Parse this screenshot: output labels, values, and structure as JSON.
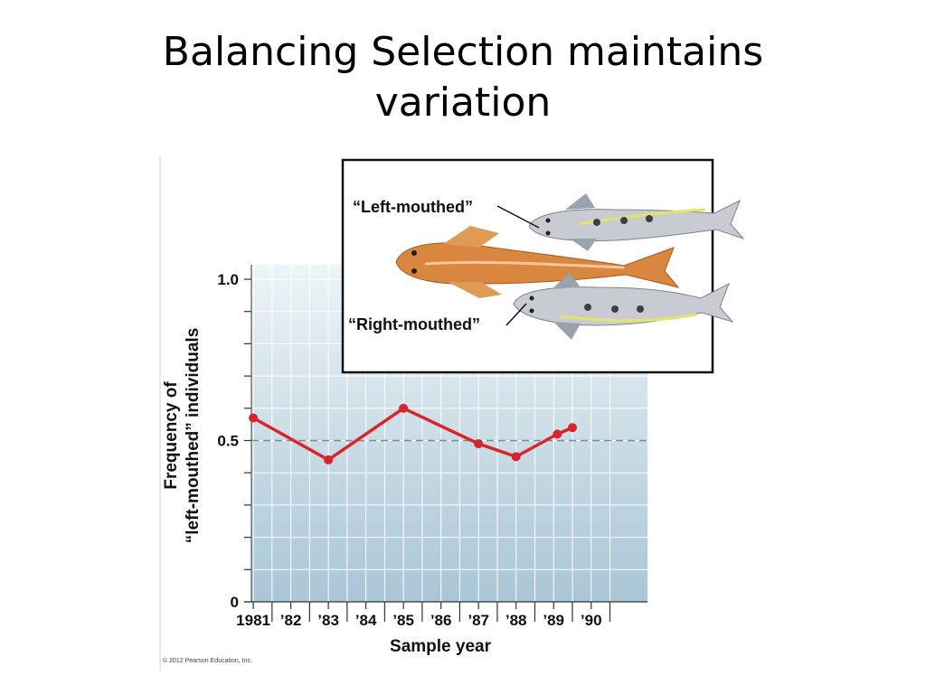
{
  "slide": {
    "title_line1": "Balancing Selection maintains",
    "title_line2": "variation",
    "copyright": "© 2012 Pearson Education, Inc."
  },
  "inset": {
    "label_left": "“Left-mouthed”",
    "label_right": "“Right-mouthed”"
  },
  "colors": {
    "plot_bg_top": "#eef4f7",
    "plot_bg_bottom": "#a9c6d6",
    "series": "#d7262b",
    "fish_orange": "#d9863f",
    "fish_gray": "#c8ccd2"
  },
  "chart_data": {
    "type": "line",
    "title": "",
    "xlabel": "Sample year",
    "ylabel_line1": "Frequency of",
    "ylabel_line2": "“left-mouthed” individuals",
    "x_tick_labels": [
      "1981",
      "’82",
      "’83",
      "’84",
      "’85",
      "’86",
      "’87",
      "’88",
      "’89",
      "’90"
    ],
    "y_tick_labels": [
      "0",
      "0.5",
      "1.0"
    ],
    "xlim": [
      1980.95,
      1991.5
    ],
    "ylim": [
      0,
      1.0
    ],
    "reference_line": 0.5,
    "grid": true,
    "series": [
      {
        "x": [
          1981.0,
          1983.0,
          1985.0,
          1987.0,
          1988.0,
          1989.1,
          1989.5
        ],
        "values": [
          0.57,
          0.44,
          0.6,
          0.49,
          0.45,
          0.52,
          0.54
        ]
      }
    ]
  }
}
